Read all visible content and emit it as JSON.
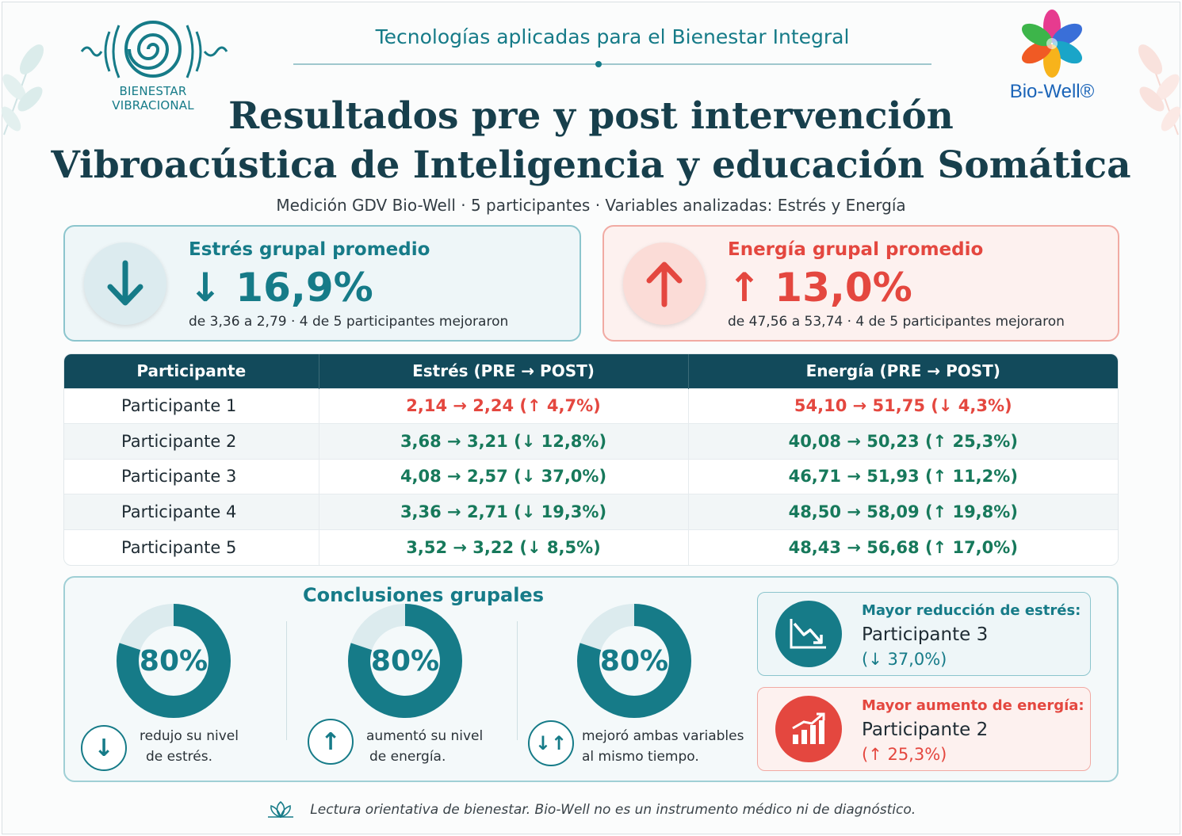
{
  "header": {
    "brand_left": "BIENESTAR VIBRACIONAL",
    "tagline": "Tecnologías aplicadas para el Bienestar Integral",
    "brand_right": "Bio-Well®"
  },
  "title": {
    "line1": "Resultados pre y post intervención",
    "line2": "Vibroacústica de Inteligencia y educación Somática",
    "subtitle": "Medición GDV Bio-Well · 5 participantes · Variables analizadas: Estrés y Energía"
  },
  "summary": {
    "stress": {
      "label": "Estrés grupal promedio",
      "value": "↓ 16,9%",
      "detail": "de 3,36 a 2,79 · 4 de 5 participantes mejoraron",
      "icon": "arrow-down-icon"
    },
    "energy": {
      "label": "Energía grupal promedio",
      "value": "↑ 13,0%",
      "detail": "de 47,56 a 53,74 · 4 de 5 participantes mejoraron",
      "icon": "arrow-up-icon"
    }
  },
  "table": {
    "headers": [
      "Participante",
      "Estrés (PRE → POST)",
      "Energía (PRE → POST)"
    ],
    "rows": [
      {
        "name": "Participante 1",
        "stress": "2,14 → 2,24 (↑ 4,7%)",
        "energy": "54,10 → 51,75 (↓ 4,3%)"
      },
      {
        "name": "Participante 2",
        "stress": "3,68 → 3,21 (↓ 12,8%)",
        "energy": "40,08 → 50,23 (↑ 25,3%)"
      },
      {
        "name": "Participante 3",
        "stress": "4,08 → 2,57 (↓ 37,0%)",
        "energy": "46,71 → 51,93 (↑ 11,2%)"
      },
      {
        "name": "Participante 4",
        "stress": "3,36 → 2,71 (↓ 19,3%)",
        "energy": "48,50 → 58,09 (↑ 19,8%)"
      },
      {
        "name": "Participante 5",
        "stress": "3,52 → 3,22 (↓ 8,5%)",
        "energy": "48,43 → 56,68 (↑ 17,0%)"
      }
    ]
  },
  "conclusions": {
    "title": "Conclusiones grupales",
    "stats": [
      {
        "percent": "80%",
        "fraction": 0.8,
        "line1": "redujo su nivel",
        "line2": "de estrés.",
        "icon": "↓"
      },
      {
        "percent": "80%",
        "fraction": 0.8,
        "line1": "aumentó su nivel",
        "line2": "de energía.",
        "icon": "↑"
      },
      {
        "percent": "80%",
        "fraction": 0.8,
        "line1": "mejoró ambas variables",
        "line2": "al mismo tiempo.",
        "icon": "↓↑"
      }
    ],
    "highlights": {
      "stress": {
        "label": "Mayor reducción de estrés:",
        "name": "Participante 3",
        "value": "(↓ 37,0%)"
      },
      "energy": {
        "label": "Mayor aumento de energía:",
        "name": "Participante 2",
        "value": "(↑ 25,3%)"
      }
    }
  },
  "footer": {
    "note": "Lectura orientativa de bienestar. Bio-Well no es un instrumento médico ni de diagnóstico."
  },
  "colors": {
    "teal": "#167b88",
    "navy": "#124a5b",
    "coral": "#e4473f",
    "green": "#17795b"
  }
}
